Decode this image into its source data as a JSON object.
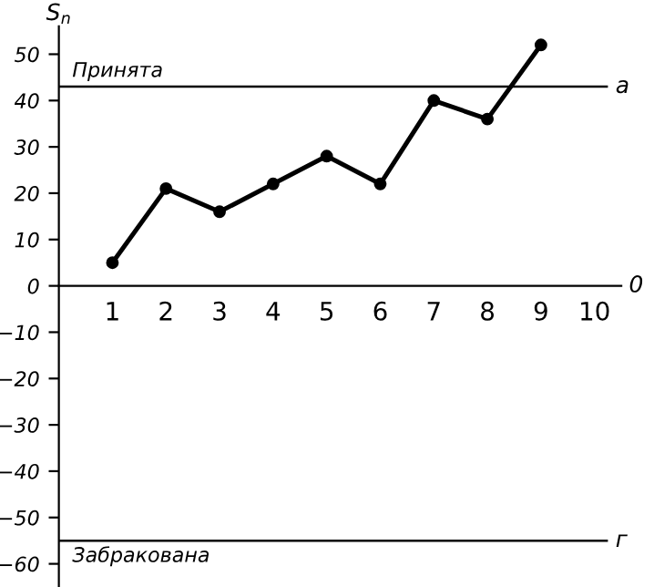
{
  "chart_data": {
    "type": "line",
    "ylabel": "S$_{n}$",
    "x": [
      1,
      2,
      3,
      4,
      5,
      6,
      7,
      8,
      9
    ],
    "series": [
      {
        "color": "#000000",
        "values": [
          5,
          21,
          16,
          22,
          28,
          22,
          40,
          36,
          52
        ]
      }
    ],
    "marker": "circle",
    "line_style": "solid",
    "grid": false,
    "xlim": [
      0,
      10.5
    ],
    "xticks": [
      1,
      2,
      3,
      4,
      5,
      6,
      7,
      8,
      9,
      10
    ],
    "ylim": [
      -65,
      56
    ],
    "yticks": [
      -60,
      -50,
      -40,
      -30,
      -20,
      -10,
      0,
      10,
      20,
      30,
      40,
      50
    ],
    "ref_lines": [
      {
        "axis": "y",
        "value": 43,
        "label": "Принята",
        "color": "#000000",
        "line_style": "solid"
      },
      {
        "axis": "y",
        "value": -55,
        "label": "Забракована",
        "color": "#000000",
        "line_style": "solid"
      }
    ],
    "annotations": [
      "a",
      "0",
      "г"
    ]
  }
}
